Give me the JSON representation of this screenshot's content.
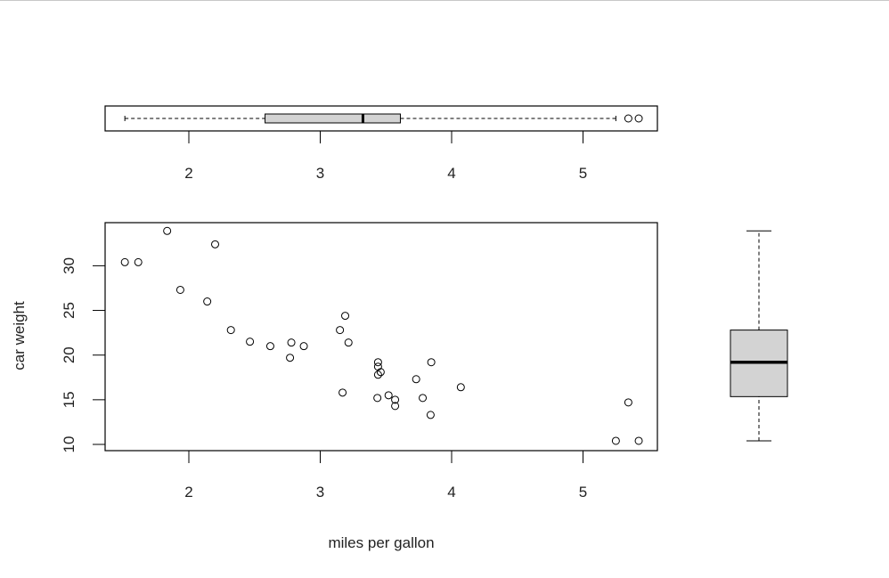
{
  "chart_data": [
    {
      "type": "scatter",
      "xlabel": "miles per gallon",
      "ylabel": "car weight",
      "xlim": [
        1.4,
        5.6
      ],
      "ylim": [
        9.4,
        34.9
      ],
      "xticks": [
        "2",
        "3",
        "4",
        "5"
      ],
      "yticks": [
        "10",
        "15",
        "20",
        "25",
        "30"
      ],
      "grid": false,
      "points": [
        [
          2.62,
          21.0
        ],
        [
          2.875,
          21.0
        ],
        [
          2.32,
          22.8
        ],
        [
          3.215,
          21.4
        ],
        [
          3.44,
          18.7
        ],
        [
          3.46,
          18.1
        ],
        [
          3.57,
          14.3
        ],
        [
          3.19,
          24.4
        ],
        [
          3.15,
          22.8
        ],
        [
          3.44,
          19.2
        ],
        [
          3.44,
          17.8
        ],
        [
          4.07,
          16.4
        ],
        [
          3.73,
          17.3
        ],
        [
          3.78,
          15.2
        ],
        [
          5.25,
          10.4
        ],
        [
          5.424,
          10.4
        ],
        [
          5.345,
          14.7
        ],
        [
          2.2,
          32.4
        ],
        [
          1.615,
          30.4
        ],
        [
          1.835,
          33.9
        ],
        [
          2.465,
          21.5
        ],
        [
          3.52,
          15.5
        ],
        [
          3.435,
          15.2
        ],
        [
          3.84,
          13.3
        ],
        [
          3.845,
          19.2
        ],
        [
          1.935,
          27.3
        ],
        [
          2.14,
          26.0
        ],
        [
          1.513,
          30.4
        ],
        [
          3.17,
          15.8
        ],
        [
          2.77,
          19.7
        ],
        [
          3.57,
          15.0
        ],
        [
          2.78,
          21.4
        ]
      ]
    },
    {
      "type": "boxplot",
      "orientation": "horizontal",
      "xticks": [
        "2",
        "3",
        "4",
        "5"
      ],
      "whisker_low": 1.513,
      "q1": 2.58,
      "median": 3.325,
      "q3": 3.61,
      "whisker_high": 5.25,
      "outliers": [
        5.345,
        5.424
      ],
      "fill": "#d3d3d3"
    },
    {
      "type": "boxplot",
      "orientation": "vertical",
      "whisker_low": 10.4,
      "q1": 15.35,
      "median": 19.2,
      "q3": 22.8,
      "whisker_high": 33.9,
      "outliers": [],
      "fill": "#d3d3d3"
    }
  ]
}
